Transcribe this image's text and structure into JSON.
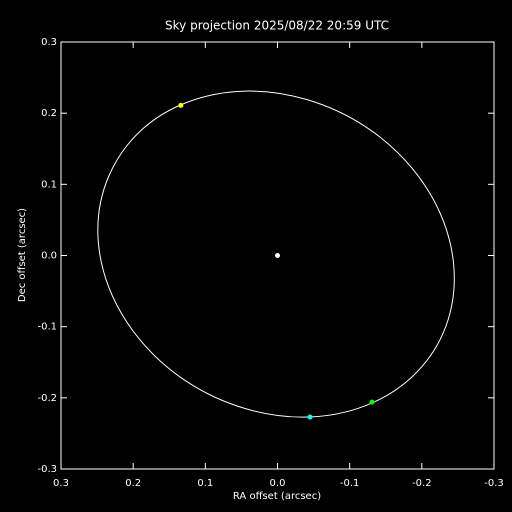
{
  "chart_data": {
    "type": "line",
    "title": "Sky projection 2025/08/22 20:59 UTC",
    "x_label": "RA offset (arcsec)",
    "y_label": "Dec offset (arcsec)",
    "xlim": [
      0.3,
      -0.3
    ],
    "ylim": [
      -0.3,
      0.3
    ],
    "xticks": [
      0.3,
      0.2,
      0.1,
      {
        "value": 0,
        "label": "0.0"
      },
      -0.1,
      -0.2,
      -0.3
    ],
    "yticks": [
      -0.3,
      -0.2,
      -0.1,
      {
        "value": 0,
        "label": "0.0"
      },
      0.1,
      0.2,
      0.3
    ],
    "background": "#000000",
    "axis_color": "#ffffff",
    "series": [
      {
        "type": "line",
        "color": "#ffffff",
        "x": [
          0.249,
          0.234,
          0.191,
          0.126,
          0.045,
          -0.041,
          -0.122,
          -0.187,
          -0.23,
          -0.245,
          -0.23,
          -0.187,
          -0.122,
          -0.041,
          0.045,
          0.126,
          0.191,
          0.234,
          0.249
        ],
        "values": [
          0.036,
          0.111,
          0.174,
          0.215,
          0.231,
          0.219,
          0.181,
          0.122,
          0.048,
          -0.032,
          -0.108,
          -0.17,
          -0.211,
          -0.227,
          -0.215,
          -0.177,
          -0.118,
          -0.044,
          0.036
        ]
      },
      {
        "type": "scatter",
        "color": "#ffffff",
        "x": [
          0
        ],
        "values": [
          0
        ]
      },
      {
        "type": "scatter",
        "color": "#ffff00",
        "x": [
          0.134
        ],
        "values": [
          0.211
        ]
      },
      {
        "type": "scatter",
        "color": "#00ff00",
        "x": [
          -0.131
        ],
        "values": [
          -0.206
        ]
      },
      {
        "type": "scatter",
        "color": "#00ffff",
        "x": [
          -0.045
        ],
        "values": [
          -0.227
        ]
      }
    ]
  }
}
